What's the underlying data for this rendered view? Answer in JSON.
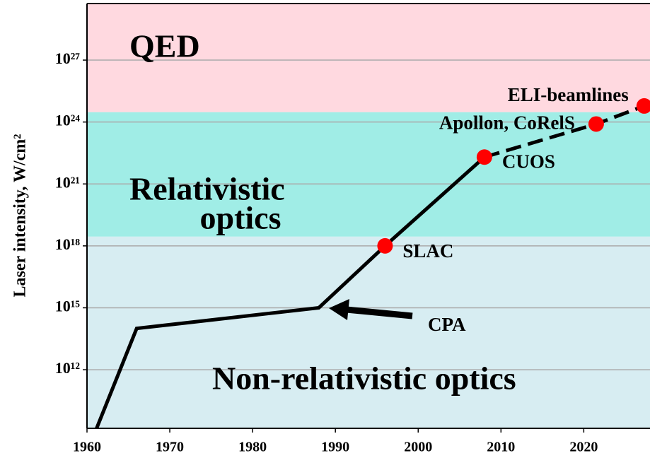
{
  "chart_data": {
    "type": "line",
    "ylabel": "Laser intensity, W/cm²",
    "log_y": true,
    "grid": true,
    "xlim": [
      1960,
      2028
    ],
    "xticks": [
      1960,
      1970,
      1980,
      1990,
      2000,
      2010,
      2020
    ],
    "ylim": [
      1450000000.0,
      5.5e+29
    ],
    "yticks": [
      {
        "value": 1000000000000.0,
        "label": "10¹²"
      },
      {
        "value": 1000000000000000.0,
        "label": "10¹⁵"
      },
      {
        "value": 1e+18,
        "label": "10¹⁸"
      },
      {
        "value": 1e+21,
        "label": "10²¹"
      },
      {
        "value": 1e+24,
        "label": "10²⁴"
      },
      {
        "value": 1e+27,
        "label": "10²⁷"
      }
    ],
    "regions": [
      {
        "text": [
          "QED"
        ],
        "lower": 3e+24,
        "color": "#ffd9e0"
      },
      {
        "text": [
          "Relativistic",
          "optics"
        ],
        "lower": 2.8e+18,
        "color": "#a0ede6"
      },
      {
        "text": [
          "Non-relativistic optics"
        ],
        "color": "#d7edf2"
      }
    ],
    "series": [
      {
        "style": "solid",
        "color": "#000000",
        "x": [
          1961,
          1966,
          1988,
          1996,
          2008
        ],
        "values": [
          1000000000.0,
          100000000000000.0,
          1000000000000000.0,
          1e+18,
          2e+22
        ]
      },
      {
        "style": "dashed",
        "color": "#000000",
        "x": [
          2008,
          2021.5,
          2027.3
        ],
        "values": [
          2e+22,
          8e+23,
          6e+24
        ]
      }
    ],
    "points": {
      "color": "#ff0000",
      "x": [
        1996,
        2008,
        2021.5,
        2027.3
      ],
      "values": [
        1e+18,
        2e+22,
        8e+23,
        6e+24
      ],
      "labels": [
        "SLAC",
        "CUOS",
        "Apollon, CoRelS",
        "ELI-beamlines"
      ]
    },
    "annotations": [
      "CPA"
    ]
  }
}
